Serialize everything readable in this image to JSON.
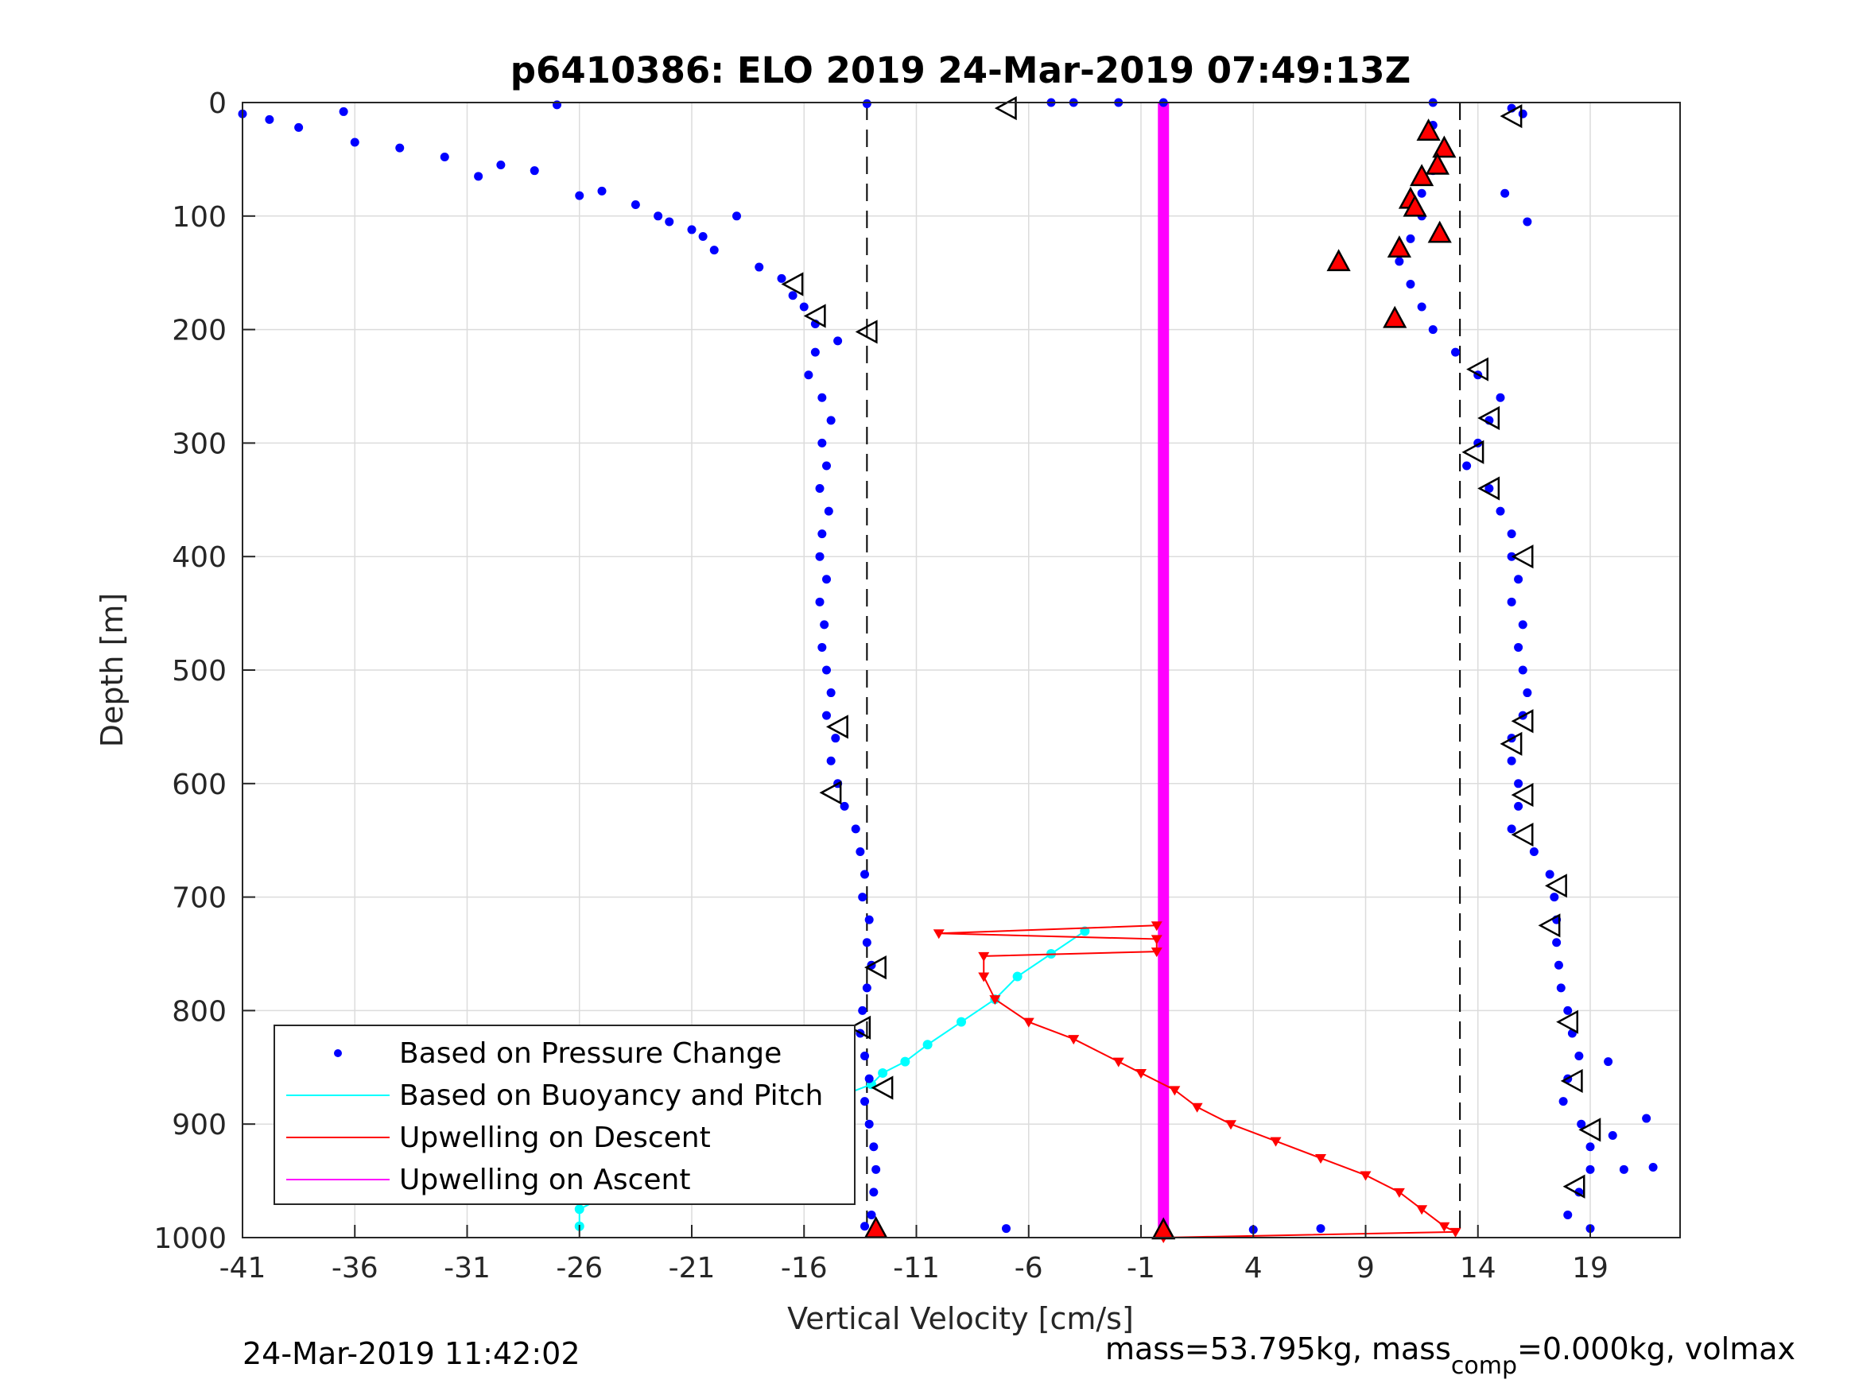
{
  "chart_data": {
    "type": "scatter",
    "title": "p6410386: ELO 2019 24-Mar-2019 07:49:13Z",
    "xlabel": "Vertical Velocity [cm/s]",
    "ylabel": "Depth [m]",
    "xlim": [
      -41,
      23
    ],
    "ylim": [
      0,
      1000
    ],
    "y_reversed": true,
    "grid": true,
    "x_ticks": [
      -41,
      -36,
      -31,
      -26,
      -21,
      -16,
      -11,
      -6,
      -1,
      4,
      9,
      14,
      19
    ],
    "x_tick_labels": [
      "-41",
      "-36",
      "-31",
      "-26",
      "-21",
      "-16",
      "-11",
      "-6",
      "-1",
      "4",
      "9",
      "14",
      "19"
    ],
    "y_ticks": [
      0,
      100,
      200,
      300,
      400,
      500,
      600,
      700,
      800,
      900,
      1000
    ],
    "y_tick_labels": [
      "0",
      "100",
      "200",
      "300",
      "400",
      "500",
      "600",
      "700",
      "800",
      "900",
      "1000"
    ],
    "reference_lines_x": [
      -13.2,
      13.2
    ],
    "legend_position": "bottom-left",
    "legend": [
      {
        "label": "Based on Pressure Change",
        "color": "#0000ff",
        "style": "dot"
      },
      {
        "label": "Based on Buoyancy and Pitch",
        "color": "#00ffff",
        "style": "line"
      },
      {
        "label": "Upwelling on Descent",
        "color": "#ff0000",
        "style": "line"
      },
      {
        "label": "Upwelling on Ascent",
        "color": "#ff00ff",
        "style": "line"
      }
    ],
    "series": [
      {
        "name": "Based on Pressure Change",
        "color": "#0000ff",
        "points": [
          [
            -41,
            10
          ],
          [
            -39.8,
            15
          ],
          [
            -38.5,
            22
          ],
          [
            -36.5,
            8
          ],
          [
            -36,
            35
          ],
          [
            -34,
            40
          ],
          [
            -32,
            48
          ],
          [
            -30.5,
            65
          ],
          [
            -29.5,
            55
          ],
          [
            -28,
            60
          ],
          [
            -27,
            2
          ],
          [
            -26,
            82
          ],
          [
            -25,
            78
          ],
          [
            -23.5,
            90
          ],
          [
            -22.5,
            100
          ],
          [
            -22,
            105
          ],
          [
            -21,
            112
          ],
          [
            -20.5,
            118
          ],
          [
            -20,
            130
          ],
          [
            -19,
            100
          ],
          [
            -18,
            145
          ],
          [
            -17,
            155
          ],
          [
            -16.5,
            170
          ],
          [
            -16,
            180
          ],
          [
            -15.5,
            195
          ],
          [
            -14.5,
            210
          ],
          [
            -15.5,
            220
          ],
          [
            -15.8,
            240
          ],
          [
            -15.2,
            260
          ],
          [
            -14.8,
            280
          ],
          [
            -15.2,
            300
          ],
          [
            -15,
            320
          ],
          [
            -15.3,
            340
          ],
          [
            -14.9,
            360
          ],
          [
            -15.2,
            380
          ],
          [
            -15.3,
            400
          ],
          [
            -15,
            420
          ],
          [
            -15.3,
            440
          ],
          [
            -15.1,
            460
          ],
          [
            -15.2,
            480
          ],
          [
            -15,
            500
          ],
          [
            -14.8,
            520
          ],
          [
            -15,
            540
          ],
          [
            -14.6,
            560
          ],
          [
            -14.8,
            580
          ],
          [
            -14.5,
            600
          ],
          [
            -14.2,
            620
          ],
          [
            -13.7,
            640
          ],
          [
            -13.5,
            660
          ],
          [
            -13.3,
            680
          ],
          [
            -13.4,
            700
          ],
          [
            -13.1,
            720
          ],
          [
            -13.2,
            740
          ],
          [
            -13,
            760
          ],
          [
            -13.2,
            780
          ],
          [
            -13.4,
            800
          ],
          [
            -13.5,
            820
          ],
          [
            -13.3,
            840
          ],
          [
            -13.1,
            860
          ],
          [
            -13.3,
            880
          ],
          [
            -13.1,
            900
          ],
          [
            -12.9,
            920
          ],
          [
            -12.8,
            940
          ],
          [
            -12.9,
            960
          ],
          [
            -13,
            980
          ],
          [
            -13.3,
            990
          ],
          [
            -13.2,
            1
          ],
          [
            -7,
            992
          ],
          [
            -5,
            0
          ],
          [
            -4,
            0
          ],
          [
            -2,
            0
          ],
          [
            0,
            0
          ],
          [
            4,
            993
          ],
          [
            7,
            992
          ],
          [
            12,
            0
          ],
          [
            19,
            992
          ],
          [
            12,
            20
          ],
          [
            12.5,
            40
          ],
          [
            12,
            60
          ],
          [
            11.5,
            80
          ],
          [
            11.5,
            100
          ],
          [
            11,
            120
          ],
          [
            10.5,
            140
          ],
          [
            11,
            160
          ],
          [
            11.5,
            180
          ],
          [
            12,
            200
          ],
          [
            13,
            220
          ],
          [
            14,
            240
          ],
          [
            15,
            260
          ],
          [
            14.5,
            280
          ],
          [
            14,
            300
          ],
          [
            13.5,
            320
          ],
          [
            14.5,
            340
          ],
          [
            15,
            360
          ],
          [
            15.5,
            380
          ],
          [
            15.5,
            400
          ],
          [
            15.8,
            420
          ],
          [
            15.5,
            440
          ],
          [
            16,
            460
          ],
          [
            15.8,
            480
          ],
          [
            16,
            500
          ],
          [
            16.2,
            520
          ],
          [
            16,
            540
          ],
          [
            15.5,
            560
          ],
          [
            15.5,
            580
          ],
          [
            15.8,
            600
          ],
          [
            15.8,
            620
          ],
          [
            15.5,
            640
          ],
          [
            16.5,
            660
          ],
          [
            17.2,
            680
          ],
          [
            17.4,
            700
          ],
          [
            17.5,
            720
          ],
          [
            17.5,
            740
          ],
          [
            17.6,
            760
          ],
          [
            17.7,
            780
          ],
          [
            18,
            800
          ],
          [
            18.2,
            820
          ],
          [
            18.5,
            840
          ],
          [
            18,
            860
          ],
          [
            17.8,
            880
          ],
          [
            18.6,
            900
          ],
          [
            19,
            920
          ],
          [
            19,
            940
          ],
          [
            18.5,
            960
          ],
          [
            18,
            980
          ],
          [
            15.5,
            5
          ],
          [
            16,
            10
          ],
          [
            15.2,
            80
          ],
          [
            16.2,
            105
          ],
          [
            20,
            910
          ],
          [
            21.5,
            895
          ],
          [
            21.8,
            938
          ],
          [
            20.5,
            940
          ],
          [
            19.8,
            845
          ]
        ]
      },
      {
        "name": "Based on Buoyancy and Pitch",
        "color": "#00ffff",
        "points": [
          [
            -3.5,
            730
          ],
          [
            -5,
            750
          ],
          [
            -6.5,
            770
          ],
          [
            -7.5,
            790
          ],
          [
            -9,
            810
          ],
          [
            -10.5,
            830
          ],
          [
            -11.5,
            845
          ],
          [
            -12.5,
            855
          ],
          [
            -13,
            865
          ],
          [
            -15,
            880
          ],
          [
            -17,
            895
          ],
          [
            -19,
            910
          ],
          [
            -21,
            930
          ],
          [
            -23,
            945
          ],
          [
            -24.5,
            960
          ],
          [
            -26,
            975
          ],
          [
            -26,
            990
          ]
        ]
      },
      {
        "name": "Upwelling on Descent",
        "color": "#ff0000",
        "points": [
          [
            -0.3,
            725
          ],
          [
            -10,
            732
          ],
          [
            -0.3,
            737
          ],
          [
            -0.3,
            748
          ],
          [
            -8,
            752
          ],
          [
            -8,
            770
          ],
          [
            -7.5,
            790
          ],
          [
            -6,
            810
          ],
          [
            -4,
            825
          ],
          [
            -2,
            845
          ],
          [
            -1,
            855
          ],
          [
            0.5,
            870
          ],
          [
            1.5,
            885
          ],
          [
            3,
            900
          ],
          [
            5,
            915
          ],
          [
            7,
            930
          ],
          [
            9,
            945
          ],
          [
            10.5,
            960
          ],
          [
            11.5,
            975
          ],
          [
            12.5,
            990
          ],
          [
            13,
            995
          ],
          [
            0,
            1000
          ]
        ]
      },
      {
        "name": "Upwelling on Ascent",
        "color": "#ff00ff",
        "points": [
          [
            0,
            0
          ],
          [
            0,
            1000
          ]
        ]
      }
    ],
    "markers": {
      "red_triangles_up": [
        [
          11.8,
          25
        ],
        [
          12.5,
          40
        ],
        [
          12.2,
          55
        ],
        [
          11.5,
          65
        ],
        [
          11,
          85
        ],
        [
          11.2,
          92
        ],
        [
          12.3,
          115
        ],
        [
          10.5,
          128
        ],
        [
          7.8,
          140
        ],
        [
          10.3,
          190
        ],
        [
          -12.8,
          992
        ],
        [
          0,
          993
        ]
      ],
      "open_triangles_left": [
        [
          -7,
          5
        ],
        [
          15.5,
          12
        ],
        [
          -16.5,
          160
        ],
        [
          -15.5,
          188
        ],
        [
          -13.2,
          202
        ],
        [
          14,
          235
        ],
        [
          14.5,
          278
        ],
        [
          13.8,
          308
        ],
        [
          14.5,
          340
        ],
        [
          16,
          400
        ],
        [
          -14.5,
          550
        ],
        [
          -14.8,
          608
        ],
        [
          16,
          545
        ],
        [
          15.5,
          565
        ],
        [
          16,
          610
        ],
        [
          16,
          645
        ],
        [
          17.5,
          690
        ],
        [
          17.2,
          725
        ],
        [
          -12.8,
          762
        ],
        [
          -13.5,
          815
        ],
        [
          -12.5,
          868
        ],
        [
          18,
          810
        ],
        [
          18.2,
          862
        ],
        [
          19,
          905
        ],
        [
          18.3,
          955
        ]
      ]
    }
  },
  "footer": {
    "timestamp": "24-Mar-2019 11:42:02",
    "mass_prefix": "mass=53.795kg, mass",
    "mass_sub": "comp",
    "mass_suffix": "=0.000kg, volmax"
  }
}
